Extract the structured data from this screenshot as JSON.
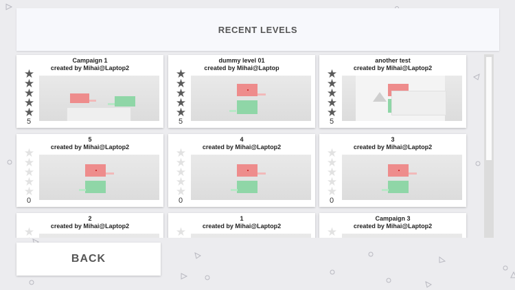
{
  "header": {
    "title": "RECENT LEVELS"
  },
  "levels": [
    {
      "title": "Campaign 1",
      "author": "created by Mihai@Laptop2",
      "stars": 5,
      "rating": "5"
    },
    {
      "title": "dummy level 01",
      "author": "created by Mihai@Laptop",
      "stars": 5,
      "rating": "5"
    },
    {
      "title": "another test",
      "author": "created by Mihai@Laptop2",
      "stars": 5,
      "rating": "5"
    },
    {
      "title": "5",
      "author": "created by Mihai@Laptop2",
      "stars": 0,
      "rating": "0"
    },
    {
      "title": "4",
      "author": "created by Mihai@Laptop2",
      "stars": 0,
      "rating": "0"
    },
    {
      "title": "3",
      "author": "created by Mihai@Laptop2",
      "stars": 0,
      "rating": "0"
    },
    {
      "title": "2",
      "author": "created by Mihai@Laptop2",
      "stars": 0,
      "rating": ""
    },
    {
      "title": "1",
      "author": "created by Mihai@Laptop2",
      "stars": 0,
      "rating": ""
    },
    {
      "title": "Campaign 3",
      "author": "created by Mihai@Laptop2",
      "stars": 0,
      "rating": ""
    }
  ],
  "back_button": {
    "label": "BACK"
  },
  "colors": {
    "star_filled": "#5a5a5a",
    "star_empty": "#e2e2e2",
    "player_block": "#ee8c8c",
    "goal_block": "#8fd6a7"
  },
  "icons": {
    "star": "star-icon"
  }
}
